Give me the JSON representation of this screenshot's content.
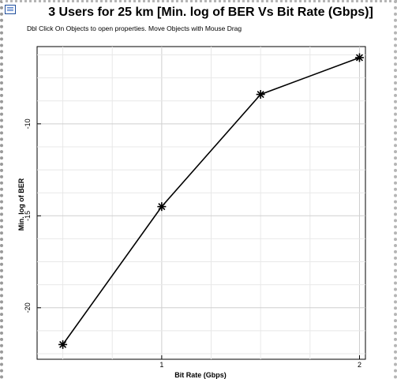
{
  "window": {
    "title": "3 Users for 25 km [Min. log of BER Vs Bit Rate (Gbps)]",
    "hint": "Dbl Click On Objects to open properties.  Move Objects with Mouse Drag",
    "icon": "graph-window-icon"
  },
  "chart_data": {
    "type": "line",
    "title": "3 Users for 25 km [Min. log of BER Vs Bit Rate (Gbps)]",
    "xlabel": "Bit Rate (Gbps)",
    "ylabel": "Min. log of BER",
    "xlim": [
      0.37,
      2.03
    ],
    "ylim": [
      -22.8,
      -5.8
    ],
    "x_ticks": [
      1,
      2
    ],
    "y_ticks": [
      -10,
      -15,
      -20
    ],
    "grid": true,
    "legend": "none",
    "marker": "asterisk",
    "line_color": "#000000",
    "series": [
      {
        "x": [
          0.5,
          1.0,
          1.5,
          2.0
        ],
        "y": [
          -22.0,
          -14.5,
          -8.4,
          -6.4
        ]
      }
    ]
  }
}
